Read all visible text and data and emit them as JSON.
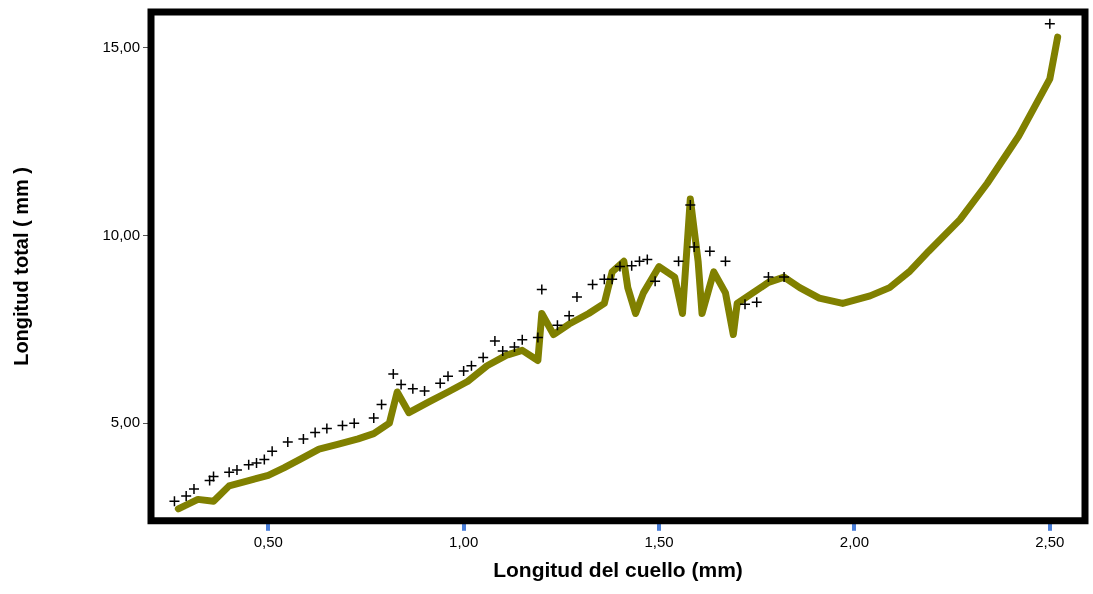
{
  "chart_data": {
    "type": "scatter",
    "xlabel": "Longitud del cuello (mm)",
    "ylabel": "Longitud total ( mm )",
    "xlim": [
      0.2,
      2.59
    ],
    "ylim": [
      2.4,
      15.95
    ],
    "xticks": [
      {
        "value": 0.5,
        "label": "0,50"
      },
      {
        "value": 1.0,
        "label": "1,00"
      },
      {
        "value": 1.5,
        "label": "1,50"
      },
      {
        "value": 2.0,
        "label": "2,00"
      },
      {
        "value": 2.5,
        "label": "2,50"
      }
    ],
    "yticks": [
      {
        "value": 5,
        "label": "5,00"
      },
      {
        "value": 10,
        "label": "10,00"
      },
      {
        "value": 15,
        "label": "15,00"
      }
    ],
    "grid": false,
    "legend": false,
    "series": [
      {
        "type": "scatter",
        "marker": "cross",
        "color": "#000000",
        "x": [
          0.26,
          0.29,
          0.31,
          0.35,
          0.36,
          0.4,
          0.42,
          0.45,
          0.47,
          0.49,
          0.51,
          0.55,
          0.59,
          0.62,
          0.65,
          0.69,
          0.72,
          0.77,
          0.79,
          0.82,
          0.84,
          0.87,
          0.9,
          0.94,
          0.96,
          1.0,
          1.02,
          1.05,
          1.08,
          1.1,
          1.13,
          1.15,
          1.19,
          1.2,
          1.24,
          1.27,
          1.29,
          1.33,
          1.36,
          1.38,
          1.4,
          1.43,
          1.45,
          1.47,
          1.49,
          1.55,
          1.58,
          1.59,
          1.63,
          1.67,
          1.72,
          1.75,
          1.78,
          1.82,
          2.5
        ],
        "values": [
          2.92,
          3.06,
          3.25,
          3.47,
          3.58,
          3.69,
          3.75,
          3.89,
          3.94,
          4.03,
          4.25,
          4.5,
          4.58,
          4.75,
          4.86,
          4.94,
          5.0,
          5.14,
          5.5,
          6.31,
          6.03,
          5.92,
          5.86,
          6.06,
          6.25,
          6.39,
          6.53,
          6.75,
          7.19,
          6.92,
          7.03,
          7.22,
          7.28,
          8.56,
          7.61,
          7.86,
          8.36,
          8.69,
          8.83,
          8.83,
          9.17,
          9.19,
          9.31,
          9.36,
          8.78,
          9.31,
          10.81,
          9.69,
          9.58,
          9.31,
          8.17,
          8.22,
          8.89,
          8.89,
          15.64
        ]
      },
      {
        "type": "line",
        "marker": "none",
        "line_style": "solid",
        "color": "#808000",
        "x": [
          0.27,
          0.32,
          0.36,
          0.4,
          0.45,
          0.5,
          0.54,
          0.58,
          0.63,
          0.68,
          0.73,
          0.77,
          0.81,
          0.83,
          0.86,
          0.91,
          0.96,
          1.01,
          1.06,
          1.11,
          1.15,
          1.19,
          1.2,
          1.23,
          1.27,
          1.32,
          1.36,
          1.38,
          1.41,
          1.42,
          1.44,
          1.46,
          1.5,
          1.54,
          1.56,
          1.58,
          1.6,
          1.61,
          1.64,
          1.67,
          1.69,
          1.7,
          1.74,
          1.78,
          1.82,
          1.86,
          1.91,
          1.97,
          2.04,
          2.09,
          2.14,
          2.19,
          2.27,
          2.34,
          2.42,
          2.5,
          2.52
        ],
        "values": [
          2.72,
          2.97,
          2.92,
          3.33,
          3.47,
          3.61,
          3.81,
          4.03,
          4.31,
          4.44,
          4.58,
          4.72,
          5.0,
          5.83,
          5.28,
          5.56,
          5.83,
          6.11,
          6.53,
          6.81,
          6.94,
          6.67,
          7.92,
          7.36,
          7.64,
          7.92,
          8.19,
          9.03,
          9.31,
          8.61,
          7.92,
          8.47,
          9.17,
          8.89,
          7.92,
          10.97,
          9.31,
          7.92,
          9.03,
          8.47,
          7.36,
          8.19,
          8.47,
          8.75,
          8.89,
          8.61,
          8.33,
          8.19,
          8.39,
          8.61,
          9.03,
          9.58,
          10.42,
          11.39,
          12.64,
          14.17,
          15.28
        ]
      }
    ]
  }
}
